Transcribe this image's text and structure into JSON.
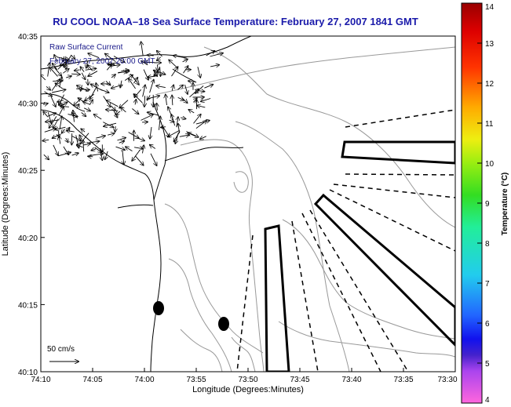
{
  "title": "RU COOL  NOAA–18  Sea Surface Temperature:  February 27, 2007 1841 GMT",
  "legend": {
    "line1": "Raw Surface Current",
    "line2": "February 27, 2007 20:00 GMT"
  },
  "scale_label": "50 cm/s",
  "x_axis": {
    "label": "Longitude (Degrees:Minutes)",
    "ticks": [
      "74:10",
      "74:05",
      "74:00",
      "73:55",
      "73:50",
      "73:45",
      "73:40",
      "73:35",
      "73:30"
    ]
  },
  "y_axis": {
    "label": "Latitude (Degrees:Minutes)",
    "ticks": [
      "40:35",
      "40:30",
      "40:25",
      "40:20",
      "40:15",
      "40:10"
    ]
  },
  "colorbar": {
    "label": "Temperature (°C)",
    "ticks": [
      "14",
      "13",
      "12",
      "11",
      "10",
      "9",
      "8",
      "7",
      "6",
      "5",
      "4"
    ],
    "range": [
      4,
      14
    ]
  },
  "colors": {
    "title": "#1a1aaa",
    "legend_text": "#1a1a8a",
    "land": "#ffffff",
    "contour": "#999999",
    "coast": "#000000"
  }
}
